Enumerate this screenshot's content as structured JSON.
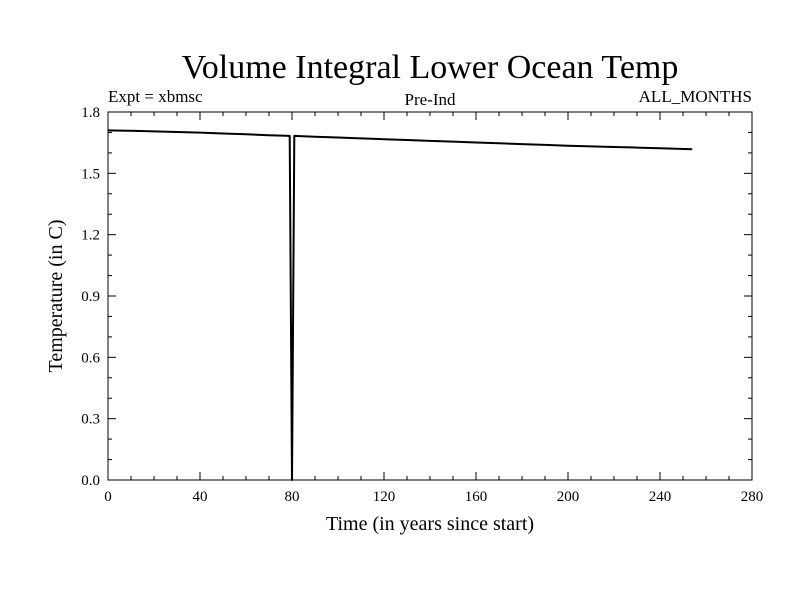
{
  "chart_data": {
    "type": "line",
    "title": "Volume Integral Lower Ocean Temp",
    "annotations": {
      "left": "Expt = xbmsc",
      "center": "Pre-Ind",
      "right": "ALL_MONTHS"
    },
    "xlabel": "Time (in years since start)",
    "ylabel": "Temperature (in C)",
    "xlim": [
      0,
      280
    ],
    "ylim": [
      0.0,
      1.8
    ],
    "x_ticks": [
      "0",
      "40",
      "80",
      "120",
      "160",
      "200",
      "240",
      "280"
    ],
    "y_ticks": [
      "0.0",
      "0.3",
      "0.6",
      "0.9",
      "1.2",
      "1.5",
      "1.8"
    ],
    "grid": false,
    "series": [
      {
        "x": [
          0,
          10,
          20,
          30,
          40,
          50,
          60,
          70,
          79,
          80,
          81,
          90,
          100,
          110,
          120,
          130,
          140,
          150,
          160,
          170,
          180,
          190,
          200,
          210,
          220,
          230,
          240,
          254
        ],
        "y": [
          1.71,
          1.708,
          1.705,
          1.702,
          1.699,
          1.695,
          1.691,
          1.686,
          1.683,
          0.0,
          1.683,
          1.679,
          1.675,
          1.671,
          1.667,
          1.663,
          1.659,
          1.655,
          1.651,
          1.647,
          1.643,
          1.639,
          1.635,
          1.632,
          1.629,
          1.626,
          1.623,
          1.618
        ]
      }
    ]
  }
}
